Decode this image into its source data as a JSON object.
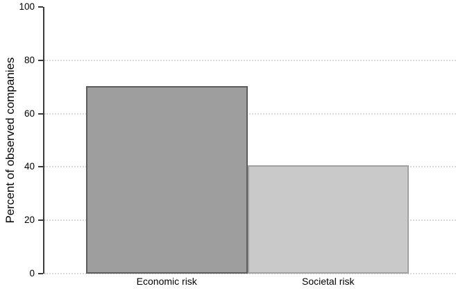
{
  "chart_data": {
    "type": "bar",
    "title": "",
    "categories": [
      "Economic risk",
      "Societal risk"
    ],
    "values": [
      70.3,
      40.5
    ],
    "series": [
      {
        "name": "Percent of observed companies",
        "values": [
          70.3,
          40.5
        ]
      }
    ],
    "xlabel": "",
    "ylabel": "Percent of observed companies",
    "ylim": [
      0,
      100
    ],
    "yticks": [
      0,
      20,
      40,
      60,
      80,
      100
    ],
    "gridlines_at": [
      0,
      20,
      40,
      60,
      80
    ],
    "grid_style": "dotted",
    "legend": "none",
    "bar_styles": [
      {
        "fill": "#9e9e9e",
        "border": "#5c5c5c"
      },
      {
        "fill": "#c9c9c9",
        "border": "#a0a0a0"
      }
    ],
    "colors": {
      "background": "#ffffff",
      "axis": "#3a3a3a",
      "gridline": "#d9d9d9",
      "text": "#000000"
    }
  }
}
